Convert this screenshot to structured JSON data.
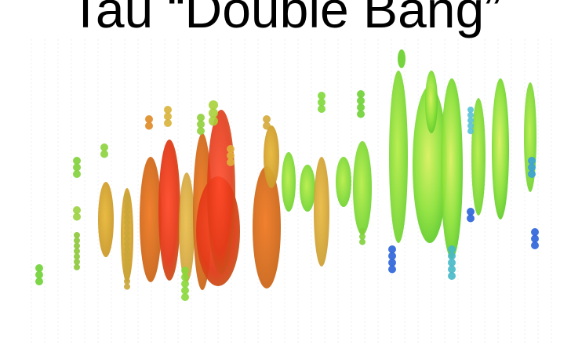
{
  "title": "Tau “Double Bang”",
  "colors": {
    "background": "#ffffff",
    "grid_line": "#e9ecef",
    "early_hits": "#e8411c",
    "mid_hits": "#e89a22",
    "late_hits": "#7fe03a",
    "latest_hits": "#2b63d9"
  }
}
